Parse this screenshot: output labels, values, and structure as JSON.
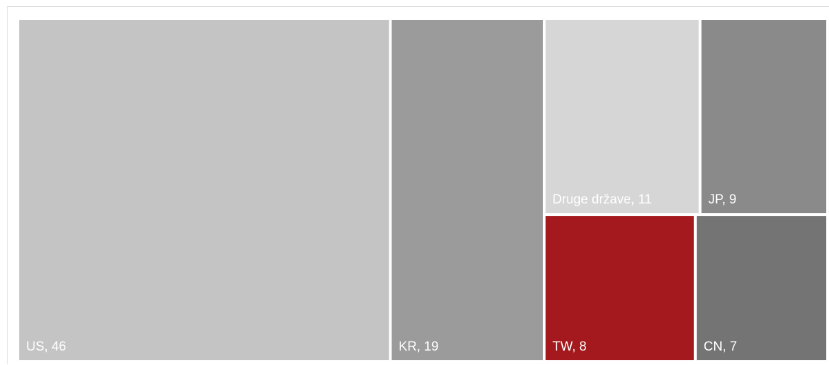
{
  "chart_data": {
    "type": "treemap",
    "items": [
      {
        "label": "US",
        "value": 46,
        "display": "US, 46",
        "color": "#c4c4c4"
      },
      {
        "label": "KR",
        "value": 19,
        "display": "KR, 19",
        "color": "#9b9b9b"
      },
      {
        "label": "Druge države",
        "value": 11,
        "display": "Druge države, 11",
        "color": "#d6d6d6"
      },
      {
        "label": "JP",
        "value": 9,
        "display": "JP, 9",
        "color": "#8a8a8a"
      },
      {
        "label": "TW",
        "value": 8,
        "display": "TW, 8",
        "color": "#a3191d"
      },
      {
        "label": "CN",
        "value": 7,
        "display": "CN, 7",
        "color": "#747474"
      }
    ]
  }
}
